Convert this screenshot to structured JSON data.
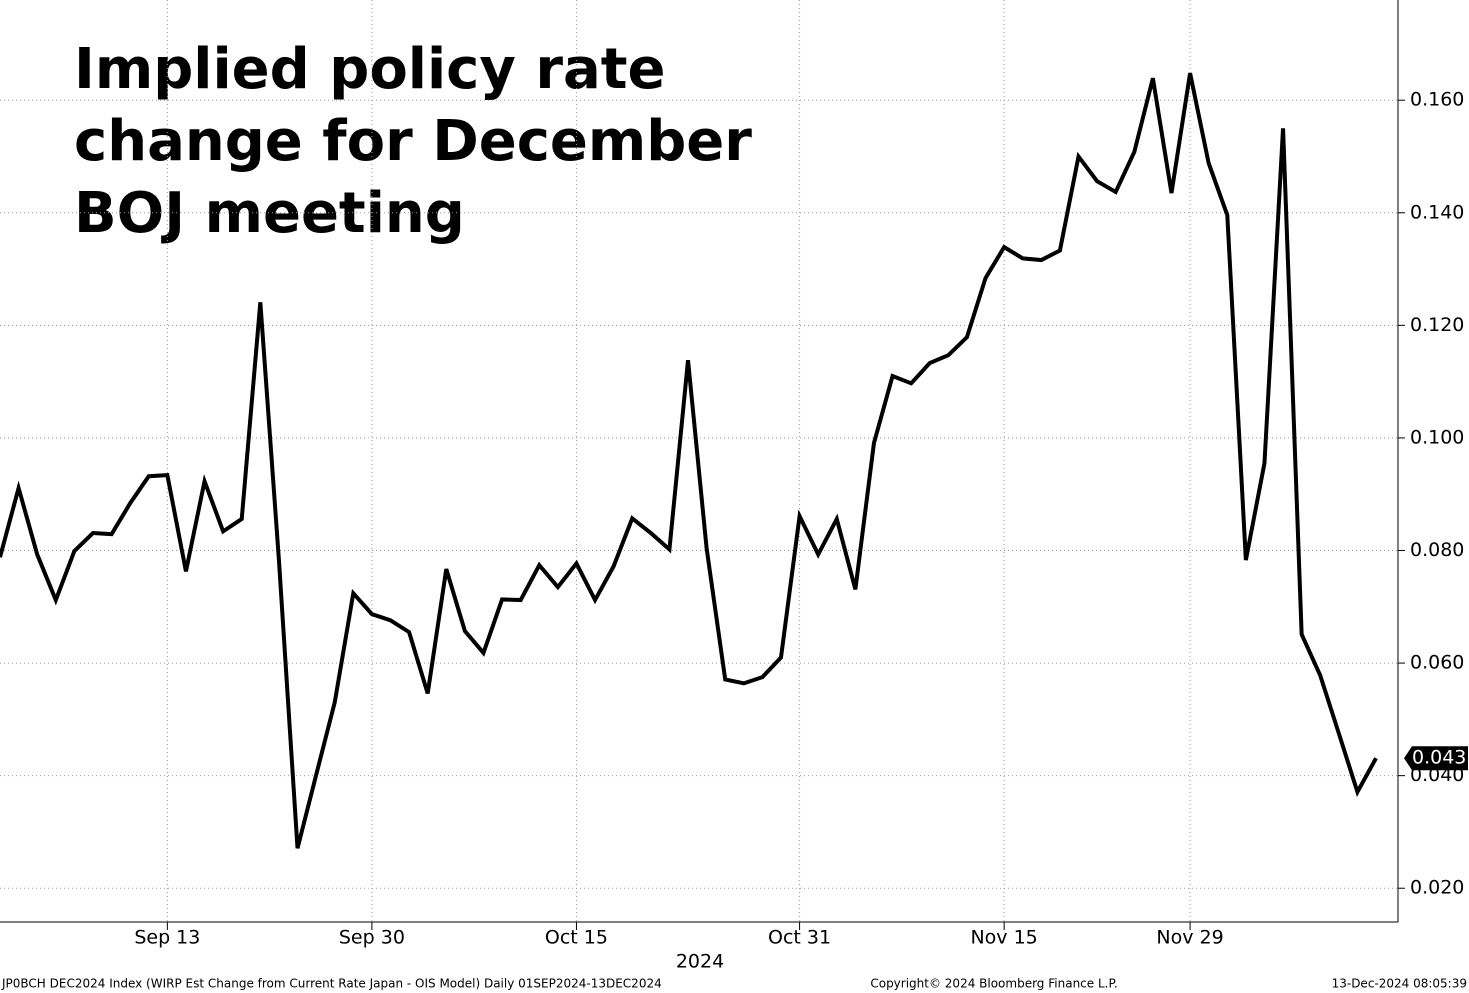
{
  "chart_data": {
    "type": "line",
    "title": [
      "Implied policy rate",
      "change for December",
      "BOJ meeting"
    ],
    "x_label": "2024",
    "categories": [
      null,
      null,
      null,
      null,
      null,
      null,
      null,
      null,
      null,
      "Sep 13",
      null,
      null,
      null,
      null,
      null,
      null,
      null,
      null,
      null,
      null,
      "Sep 30",
      null,
      null,
      null,
      null,
      null,
      null,
      null,
      null,
      null,
      null,
      "Oct 15",
      null,
      null,
      null,
      null,
      null,
      null,
      null,
      null,
      null,
      null,
      null,
      "Oct 31",
      null,
      null,
      null,
      null,
      null,
      null,
      null,
      null,
      null,
      null,
      "Nov 15",
      null,
      null,
      null,
      null,
      null,
      null,
      null,
      null,
      null,
      "Nov 29",
      null,
      null,
      null,
      null,
      null,
      null,
      null,
      null,
      null,
      null
    ],
    "series": [
      {
        "name": "JP0BCH DEC2024 Index",
        "color": "#000000",
        "values": [
          0.0788,
          0.0911,
          0.0793,
          0.0712,
          0.0799,
          0.0831,
          0.0829,
          0.0884,
          0.0932,
          0.0934,
          0.0763,
          0.0923,
          0.0834,
          0.0856,
          0.1241,
          0.0783,
          0.0271,
          0.0401,
          0.053,
          0.0724,
          0.0687,
          0.0676,
          0.0655,
          0.0546,
          0.0767,
          0.0657,
          0.0618,
          0.0713,
          0.0712,
          0.0774,
          0.0735,
          0.0777,
          0.0712,
          0.0772,
          0.0857,
          0.0831,
          0.0802,
          0.1138,
          0.0804,
          0.0571,
          0.0564,
          0.0575,
          0.061,
          0.0861,
          0.0793,
          0.0856,
          0.0731,
          0.0991,
          0.111,
          0.1097,
          0.1133,
          0.1147,
          0.1179,
          0.1284,
          0.1339,
          0.1319,
          0.1316,
          0.1333,
          0.15,
          0.1456,
          0.1437,
          0.1508,
          0.1639,
          0.1435,
          0.1648,
          0.1488,
          0.1396,
          0.0783,
          0.0955,
          0.155,
          0.0651,
          0.0578,
          0.0475,
          0.0371,
          0.0431
        ],
        "value_labels": [
          null,
          null,
          null,
          null,
          null,
          null,
          null,
          null,
          null,
          null,
          null,
          null,
          null,
          null,
          null,
          null,
          null,
          null,
          null,
          null,
          null,
          null,
          null,
          null,
          null,
          null,
          null,
          null,
          null,
          null,
          null,
          null,
          null,
          null,
          null,
          null,
          null,
          null,
          null,
          null,
          null,
          null,
          null,
          null,
          null,
          null,
          null,
          null,
          null,
          null,
          null,
          null,
          null,
          null,
          null,
          null,
          null,
          null,
          null,
          null,
          null,
          null,
          null,
          null,
          null,
          null,
          null,
          null,
          null,
          null,
          null,
          null,
          null,
          null,
          "0.043"
        ]
      }
    ],
    "ylim": [
      0.014,
      0.1778
    ],
    "yticks": [
      {
        "value": 0.02,
        "label": "0.020"
      },
      {
        "value": 0.04,
        "label": "0.040"
      },
      {
        "value": 0.06,
        "label": "0.060"
      },
      {
        "value": 0.08,
        "label": "0.080"
      },
      {
        "value": 0.1,
        "label": "0.100"
      },
      {
        "value": 0.12,
        "label": "0.120"
      },
      {
        "value": 0.14,
        "label": "0.140"
      },
      {
        "value": 0.16,
        "label": "0.160"
      }
    ],
    "grid": true,
    "footer": {
      "source": "JP0BCH DEC2024 Index (WIRP Est Change from Current Rate Japan - OIS Model)  Daily 01SEP2024-13DEC2024",
      "copyright": "Copyright© 2024 Bloomberg Finance L.P.",
      "timestamp": "13-Dec-2024 08:05:39"
    }
  }
}
